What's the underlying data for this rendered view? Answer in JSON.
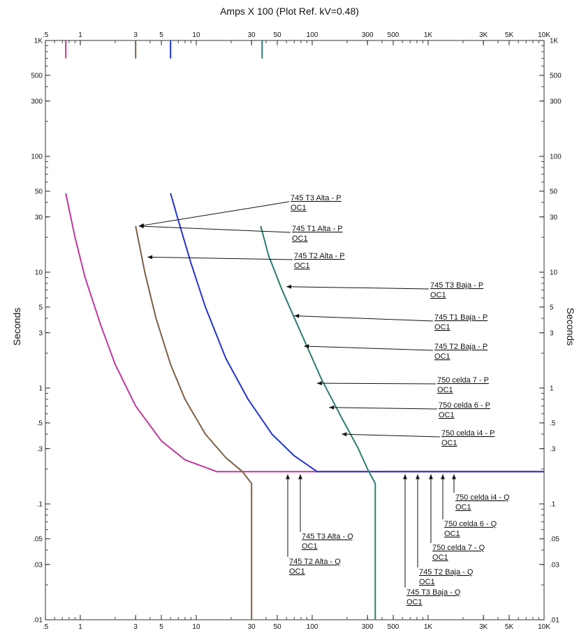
{
  "chart_data": {
    "type": "line",
    "title": "Amps  X  100 (Plot Ref. kV=0.48)",
    "xlabel": "Amps  X  100 (Plot Ref. kV=0.48)",
    "ylabel": "Seconds",
    "x_scale": "log",
    "y_scale": "log",
    "xlim": [
      0.5,
      10000
    ],
    "ylim": [
      0.01,
      1000
    ],
    "x_ticks": [
      {
        "value": 0.5,
        "label": ".5"
      },
      {
        "value": 1,
        "label": "1"
      },
      {
        "value": 3,
        "label": "3"
      },
      {
        "value": 5,
        "label": "5"
      },
      {
        "value": 10,
        "label": "10"
      },
      {
        "value": 30,
        "label": "30"
      },
      {
        "value": 50,
        "label": "50"
      },
      {
        "value": 100,
        "label": "100"
      },
      {
        "value": 300,
        "label": "300"
      },
      {
        "value": 500,
        "label": "500"
      },
      {
        "value": 1000,
        "label": "1K"
      },
      {
        "value": 3000,
        "label": "3K"
      },
      {
        "value": 5000,
        "label": "5K"
      },
      {
        "value": 10000,
        "label": "10K"
      }
    ],
    "y_ticks": [
      {
        "value": 1000,
        "label": "1K"
      },
      {
        "value": 500,
        "label": "500"
      },
      {
        "value": 300,
        "label": "300"
      },
      {
        "value": 100,
        "label": "100"
      },
      {
        "value": 50,
        "label": "50"
      },
      {
        "value": 30,
        "label": "30"
      },
      {
        "value": 10,
        "label": "10"
      },
      {
        "value": 5,
        "label": "5"
      },
      {
        "value": 3,
        "label": "3"
      },
      {
        "value": 1,
        "label": "1"
      },
      {
        "value": 0.5,
        "label": ".5"
      },
      {
        "value": 0.3,
        "label": ".3"
      },
      {
        "value": 0.1,
        "label": ".1"
      },
      {
        "value": 0.05,
        "label": ".05"
      },
      {
        "value": 0.03,
        "label": ".03"
      },
      {
        "value": 0.01,
        "label": ".01"
      }
    ],
    "grid": false,
    "series": [
      {
        "color": "#c0369b",
        "points": [
          [
            0.75,
            48
          ],
          [
            0.9,
            20
          ],
          [
            1.1,
            9
          ],
          [
            1.5,
            3.5
          ],
          [
            2,
            1.6
          ],
          [
            3,
            0.7
          ],
          [
            5,
            0.35
          ],
          [
            8,
            0.24
          ],
          [
            15,
            0.19
          ],
          [
            10000,
            0.19
          ]
        ]
      },
      {
        "color": "#7d5f44",
        "points": [
          [
            3,
            25
          ],
          [
            3.6,
            10
          ],
          [
            4.5,
            4
          ],
          [
            6,
            1.6
          ],
          [
            8,
            0.8
          ],
          [
            12,
            0.4
          ],
          [
            18,
            0.25
          ],
          [
            25,
            0.19
          ],
          [
            30,
            0.15
          ],
          [
            30,
            0.01
          ]
        ]
      },
      {
        "color": "#2233cc",
        "points": [
          [
            6,
            48
          ],
          [
            7,
            28
          ],
          [
            9,
            12
          ],
          [
            12,
            5
          ],
          [
            18,
            1.8
          ],
          [
            28,
            0.8
          ],
          [
            45,
            0.4
          ],
          [
            70,
            0.26
          ],
          [
            110,
            0.19
          ],
          [
            10000,
            0.19
          ]
        ]
      },
      {
        "color": "#2a7d70",
        "points": [
          [
            36,
            25
          ],
          [
            42,
            14
          ],
          [
            55,
            7
          ],
          [
            80,
            3
          ],
          [
            120,
            1.2
          ],
          [
            180,
            0.55
          ],
          [
            250,
            0.3
          ],
          [
            300,
            0.2
          ],
          [
            350,
            0.15
          ],
          [
            350,
            0.01
          ]
        ]
      },
      {
        "color": "#c0369b",
        "points": [
          [
            0.75,
            1000
          ],
          [
            0.75,
            700
          ]
        ]
      },
      {
        "color": "#7d5f44",
        "points": [
          [
            3,
            1000
          ],
          [
            3,
            700
          ]
        ]
      },
      {
        "color": "#2233cc",
        "points": [
          [
            6,
            1000
          ],
          [
            6,
            700
          ]
        ]
      },
      {
        "color": "#2a7d70",
        "points": [
          [
            37,
            1000
          ],
          [
            37,
            700
          ]
        ]
      }
    ],
    "annotations": [
      {
        "line1": "745 T3 Alta - P",
        "line2": "OC1",
        "to": [
          3.2,
          25
        ]
      },
      {
        "line1": "745 T1 Alta - P",
        "line2": "OC1",
        "to": [
          3.2,
          25
        ]
      },
      {
        "line1": "745 T2 Alta - P",
        "line2": "OC1",
        "to": [
          3.8,
          13.5
        ]
      },
      {
        "line1": "745 T3 Baja - P",
        "line2": "OC1",
        "to": [
          60,
          7.5
        ]
      },
      {
        "line1": "745 T1 Baja - P",
        "line2": "OC1",
        "to": [
          70,
          4.2
        ]
      },
      {
        "line1": "745 T2 Baja - P",
        "line2": "OC1",
        "to": [
          85,
          2.3
        ]
      },
      {
        "line1": "750 celda 7 - P",
        "line2": "OC1",
        "to": [
          110,
          1.1
        ]
      },
      {
        "line1": "750 celda 6 - P",
        "line2": "OC1",
        "to": [
          140,
          0.68
        ]
      },
      {
        "line1": "750 celda i4 - P",
        "line2": "OC1",
        "to": [
          180,
          0.4
        ]
      },
      {
        "line1": "745 T3 Alta - Q",
        "line2": "OC1",
        "to": [
          75,
          0.18
        ]
      },
      {
        "line1": "745 T2 Alta - Q",
        "line2": "OC1",
        "to": [
          55,
          0.18
        ]
      },
      {
        "line1": "750 celda i4 - Q",
        "line2": "OC1",
        "to": [
          1600,
          0.18
        ]
      },
      {
        "line1": "750 celda 6 - Q",
        "line2": "OC1",
        "to": [
          1250,
          0.18
        ]
      },
      {
        "line1": "750 celda 7 - Q",
        "line2": "OC1",
        "to": [
          1000,
          0.18
        ]
      },
      {
        "line1": "745 T2 Baja - Q",
        "line2": "OC1",
        "to": [
          800,
          0.18
        ]
      },
      {
        "line1": "745 T3 Baja - Q",
        "line2": "OC1",
        "to": [
          600,
          0.18
        ]
      }
    ]
  }
}
